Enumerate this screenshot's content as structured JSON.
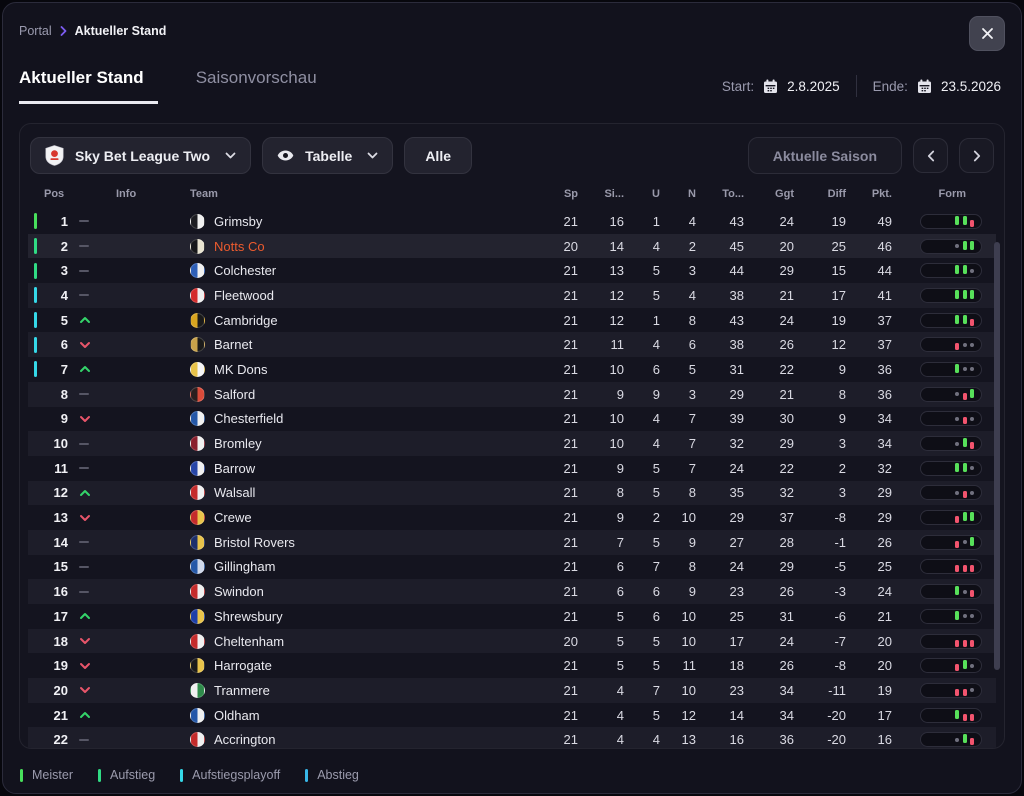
{
  "breadcrumb": {
    "root": "Portal",
    "current": "Aktueller Stand"
  },
  "tabs": [
    {
      "label": "Aktueller Stand",
      "active": true
    },
    {
      "label": "Saisonvorschau",
      "active": false
    }
  ],
  "dates": {
    "start_label": "Start:",
    "start_value": "2.8.2025",
    "end_label": "Ende:",
    "end_value": "23.5.2026"
  },
  "toolbar": {
    "league": "Sky Bet League Two",
    "view": "Tabelle",
    "filter": "Alle",
    "season": "Aktuelle Saison"
  },
  "columns": [
    {
      "key": "pos",
      "label": "Pos"
    },
    {
      "key": "info",
      "label": "Info"
    },
    {
      "key": "team",
      "label": "Team"
    },
    {
      "key": "sp",
      "label": "Sp"
    },
    {
      "key": "si",
      "label": "Si..."
    },
    {
      "key": "u",
      "label": "U"
    },
    {
      "key": "n",
      "label": "N"
    },
    {
      "key": "to",
      "label": "To..."
    },
    {
      "key": "ggt",
      "label": "Ggt"
    },
    {
      "key": "diff",
      "label": "Diff"
    },
    {
      "key": "pkt",
      "label": "Pkt."
    },
    {
      "key": "form",
      "label": "Form"
    }
  ],
  "rows": [
    {
      "pos": 1,
      "trend": "same",
      "zone": "meister",
      "team": "Grimsby",
      "badge": [
        "#1d1d22",
        "#f0f0f0"
      ],
      "sp": 21,
      "si": 16,
      "u": 1,
      "n": 4,
      "to": 43,
      "ggt": 24,
      "diff": 19,
      "pkt": 49,
      "form": [
        "W",
        "W",
        "L"
      ],
      "highlight": false
    },
    {
      "pos": 2,
      "trend": "same",
      "zone": "aufstieg",
      "team": "Notts Co",
      "badge": [
        "#16161a",
        "#e8e3d0"
      ],
      "sp": 20,
      "si": 14,
      "u": 4,
      "n": 2,
      "to": 45,
      "ggt": 20,
      "diff": 25,
      "pkt": 46,
      "form": [
        "D",
        "W",
        "W"
      ],
      "highlight": true
    },
    {
      "pos": 3,
      "trend": "same",
      "zone": "aufstieg",
      "team": "Colchester",
      "badge": [
        "#2e5fb7",
        "#f0f0f0"
      ],
      "sp": 21,
      "si": 13,
      "u": 5,
      "n": 3,
      "to": 44,
      "ggt": 29,
      "diff": 15,
      "pkt": 44,
      "form": [
        "W",
        "W",
        "D"
      ],
      "highlight": false
    },
    {
      "pos": 4,
      "trend": "same",
      "zone": "playoff",
      "team": "Fleetwood",
      "badge": [
        "#d42b2b",
        "#f0f0f0"
      ],
      "sp": 21,
      "si": 12,
      "u": 5,
      "n": 4,
      "to": 38,
      "ggt": 21,
      "diff": 17,
      "pkt": 41,
      "form": [
        "W",
        "W",
        "W"
      ],
      "highlight": false
    },
    {
      "pos": 5,
      "trend": "up",
      "zone": "playoff",
      "team": "Cambridge",
      "badge": [
        "#d9a520",
        "#1a1a1a"
      ],
      "sp": 21,
      "si": 12,
      "u": 1,
      "n": 8,
      "to": 43,
      "ggt": 24,
      "diff": 19,
      "pkt": 37,
      "form": [
        "W",
        "W",
        "L"
      ],
      "highlight": false
    },
    {
      "pos": 6,
      "trend": "down",
      "zone": "playoff",
      "team": "Barnet",
      "badge": [
        "#c8a24a",
        "#1a1a1a"
      ],
      "sp": 21,
      "si": 11,
      "u": 4,
      "n": 6,
      "to": 38,
      "ggt": 26,
      "diff": 12,
      "pkt": 37,
      "form": [
        "L",
        "D",
        "D"
      ],
      "highlight": false
    },
    {
      "pos": 7,
      "trend": "up",
      "zone": "playoff",
      "team": "MK Dons",
      "badge": [
        "#e8c34a",
        "#f5f5f5"
      ],
      "sp": 21,
      "si": 10,
      "u": 6,
      "n": 5,
      "to": 31,
      "ggt": 22,
      "diff": 9,
      "pkt": 36,
      "form": [
        "W",
        "D",
        "D"
      ],
      "highlight": false
    },
    {
      "pos": 8,
      "trend": "same",
      "zone": "none",
      "team": "Salford",
      "badge": [
        "#2b1e1e",
        "#d94b3a"
      ],
      "sp": 21,
      "si": 9,
      "u": 9,
      "n": 3,
      "to": 29,
      "ggt": 21,
      "diff": 8,
      "pkt": 36,
      "form": [
        "D",
        "L",
        "W"
      ],
      "highlight": false
    },
    {
      "pos": 9,
      "trend": "down",
      "zone": "none",
      "team": "Chesterfield",
      "badge": [
        "#2558a8",
        "#f0f0f0"
      ],
      "sp": 21,
      "si": 10,
      "u": 4,
      "n": 7,
      "to": 39,
      "ggt": 30,
      "diff": 9,
      "pkt": 34,
      "form": [
        "D",
        "L",
        "D"
      ],
      "highlight": false
    },
    {
      "pos": 10,
      "trend": "same",
      "zone": "none",
      "team": "Bromley",
      "badge": [
        "#8a1e2d",
        "#f0f0f0"
      ],
      "sp": 21,
      "si": 10,
      "u": 4,
      "n": 7,
      "to": 32,
      "ggt": 29,
      "diff": 3,
      "pkt": 34,
      "form": [
        "D",
        "W",
        "L"
      ],
      "highlight": false
    },
    {
      "pos": 11,
      "trend": "same",
      "zone": "none",
      "team": "Barrow",
      "badge": [
        "#2746a8",
        "#f0f0f0"
      ],
      "sp": 21,
      "si": 9,
      "u": 5,
      "n": 7,
      "to": 24,
      "ggt": 22,
      "diff": 2,
      "pkt": 32,
      "form": [
        "W",
        "W",
        "D"
      ],
      "highlight": false
    },
    {
      "pos": 12,
      "trend": "up",
      "zone": "none",
      "team": "Walsall",
      "badge": [
        "#c42b2b",
        "#f0f0f0"
      ],
      "sp": 21,
      "si": 8,
      "u": 5,
      "n": 8,
      "to": 35,
      "ggt": 32,
      "diff": 3,
      "pkt": 29,
      "form": [
        "D",
        "L",
        "D"
      ],
      "highlight": false
    },
    {
      "pos": 13,
      "trend": "down",
      "zone": "none",
      "team": "Crewe",
      "badge": [
        "#c42b2b",
        "#e8c34a"
      ],
      "sp": 21,
      "si": 9,
      "u": 2,
      "n": 10,
      "to": 29,
      "ggt": 37,
      "diff": -8,
      "pkt": 29,
      "form": [
        "L",
        "W",
        "W"
      ],
      "highlight": false
    },
    {
      "pos": 14,
      "trend": "same",
      "zone": "none",
      "team": "Bristol Rovers",
      "badge": [
        "#1d2f6b",
        "#e8c34a"
      ],
      "sp": 21,
      "si": 7,
      "u": 5,
      "n": 9,
      "to": 27,
      "ggt": 28,
      "diff": -1,
      "pkt": 26,
      "form": [
        "L",
        "D",
        "W"
      ],
      "highlight": false
    },
    {
      "pos": 15,
      "trend": "same",
      "zone": "none",
      "team": "Gillingham",
      "badge": [
        "#2558a8",
        "#cfd8ea"
      ],
      "sp": 21,
      "si": 6,
      "u": 7,
      "n": 8,
      "to": 24,
      "ggt": 29,
      "diff": -5,
      "pkt": 25,
      "form": [
        "L",
        "L",
        "L"
      ],
      "highlight": false
    },
    {
      "pos": 16,
      "trend": "same",
      "zone": "none",
      "team": "Swindon",
      "badge": [
        "#c42b2b",
        "#f0f0f0"
      ],
      "sp": 21,
      "si": 6,
      "u": 6,
      "n": 9,
      "to": 23,
      "ggt": 26,
      "diff": -3,
      "pkt": 24,
      "form": [
        "W",
        "D",
        "L"
      ],
      "highlight": false
    },
    {
      "pos": 17,
      "trend": "up",
      "zone": "none",
      "team": "Shrewsbury",
      "badge": [
        "#1d3fa8",
        "#e8c34a"
      ],
      "sp": 21,
      "si": 5,
      "u": 6,
      "n": 10,
      "to": 25,
      "ggt": 31,
      "diff": -6,
      "pkt": 21,
      "form": [
        "W",
        "D",
        "D"
      ],
      "highlight": false
    },
    {
      "pos": 18,
      "trend": "down",
      "zone": "none",
      "team": "Cheltenham",
      "badge": [
        "#c42b2b",
        "#f0f0f0"
      ],
      "sp": 20,
      "si": 5,
      "u": 5,
      "n": 10,
      "to": 17,
      "ggt": 24,
      "diff": -7,
      "pkt": 20,
      "form": [
        "L",
        "L",
        "L"
      ],
      "highlight": false
    },
    {
      "pos": 19,
      "trend": "down",
      "zone": "none",
      "team": "Harrogate",
      "badge": [
        "#1a1a1a",
        "#e8c34a"
      ],
      "sp": 21,
      "si": 5,
      "u": 5,
      "n": 11,
      "to": 18,
      "ggt": 26,
      "diff": -8,
      "pkt": 20,
      "form": [
        "L",
        "W",
        "D"
      ],
      "highlight": false
    },
    {
      "pos": 20,
      "trend": "down",
      "zone": "none",
      "team": "Tranmere",
      "badge": [
        "#f0f0f0",
        "#2e8b4a"
      ],
      "sp": 21,
      "si": 4,
      "u": 7,
      "n": 10,
      "to": 23,
      "ggt": 34,
      "diff": -11,
      "pkt": 19,
      "form": [
        "L",
        "L",
        "D"
      ],
      "highlight": false
    },
    {
      "pos": 21,
      "trend": "up",
      "zone": "none",
      "team": "Oldham",
      "badge": [
        "#2558a8",
        "#f0f0f0"
      ],
      "sp": 21,
      "si": 4,
      "u": 5,
      "n": 12,
      "to": 14,
      "ggt": 34,
      "diff": -20,
      "pkt": 17,
      "form": [
        "W",
        "L",
        "L"
      ],
      "highlight": false
    },
    {
      "pos": 22,
      "trend": "same",
      "zone": "none",
      "team": "Accrington",
      "badge": [
        "#c42b2b",
        "#f0f0f0"
      ],
      "sp": 21,
      "si": 4,
      "u": 4,
      "n": 13,
      "to": 16,
      "ggt": 36,
      "diff": -20,
      "pkt": 16,
      "form": [
        "D",
        "W",
        "L"
      ],
      "highlight": false
    }
  ],
  "zones": {
    "meister": "#48e05c",
    "aufstieg": "#30db84",
    "playoff": "#35d8e8",
    "abstieg": "#38b7e8"
  },
  "legend": [
    {
      "label": "Meister",
      "zone": "meister"
    },
    {
      "label": "Aufstieg",
      "zone": "aufstieg"
    },
    {
      "label": "Aufstiegsplayoff",
      "zone": "playoff"
    },
    {
      "label": "Abstieg",
      "zone": "abstieg"
    }
  ],
  "colors": {
    "highlight_team": "#ec5b2e",
    "win": "#57e05a",
    "draw": "#70707e",
    "loss": "#f2546e",
    "trend_up": "#34d46a",
    "trend_down": "#e8556a",
    "breadcrumb_chevron": "#7c5cf0"
  }
}
